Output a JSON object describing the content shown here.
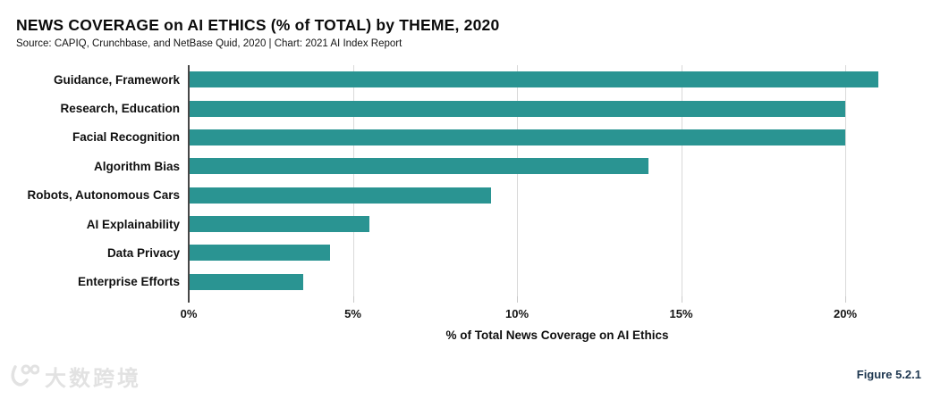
{
  "header": {
    "title": "NEWS COVERAGE on AI ETHICS (% of TOTAL) by THEME, 2020",
    "source": "Source: CAPIQ, Crunchbase, and NetBase Quid, 2020 | Chart: 2021 AI Index Report"
  },
  "chart_data": {
    "type": "bar",
    "orientation": "horizontal",
    "title": "NEWS COVERAGE on AI ETHICS (% of TOTAL) by THEME, 2020",
    "categories": [
      "Guidance, Framework",
      "Research, Education",
      "Facial Recognition",
      "Algorithm Bias",
      "Robots, Autonomous Cars",
      "AI Explainability",
      "Data Privacy",
      "Enterprise Efforts"
    ],
    "values": [
      21,
      20,
      20,
      14,
      9.2,
      5.5,
      4.3,
      3.5
    ],
    "unit": "%",
    "xlabel": "% of Total News Coverage on AI Ethics",
    "ylabel": "",
    "x_ticks": [
      0,
      5,
      10,
      15,
      20
    ],
    "x_tick_labels": [
      "0%",
      "5%",
      "10%",
      "15%",
      "20%"
    ],
    "xlim": [
      0,
      22.45
    ],
    "grid": true,
    "legend": "none"
  },
  "colors": {
    "bar": "#2a9492",
    "gridline": "#d9d9d9",
    "axis": "#474747",
    "figure_label": "#1e3750",
    "watermark": "#e2e2e2"
  },
  "footer": {
    "figure_label": "Figure 5.2.1",
    "watermark_text": "大数跨境",
    "watermark_logo": "100-swoosh-logo"
  }
}
